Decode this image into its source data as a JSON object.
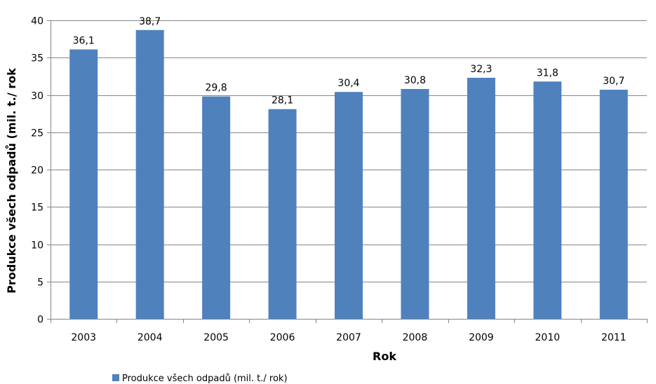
{
  "chart_data": {
    "type": "bar",
    "title": "",
    "xlabel": "Rok",
    "ylabel": "Produkce všech odpadů (mil. t./ rok",
    "categories": [
      "2003",
      "2004",
      "2005",
      "2006",
      "2007",
      "2008",
      "2009",
      "2010",
      "2011"
    ],
    "series": [
      {
        "name": "Produkce všech odpadů (mil. t./ rok)",
        "values": [
          36.1,
          38.7,
          29.8,
          28.1,
          30.4,
          30.8,
          32.3,
          31.8,
          30.7
        ],
        "labels": [
          "36,1",
          "38,7",
          "29,8",
          "28,1",
          "30,4",
          "30,8",
          "32,3",
          "31,8",
          "30,7"
        ],
        "color": "#4F81BD"
      }
    ],
    "ylim": [
      0,
      40
    ],
    "yticks": [
      0,
      5,
      10,
      15,
      20,
      25,
      30,
      35,
      40
    ],
    "grid": true,
    "legend_position": "bottom-left"
  }
}
